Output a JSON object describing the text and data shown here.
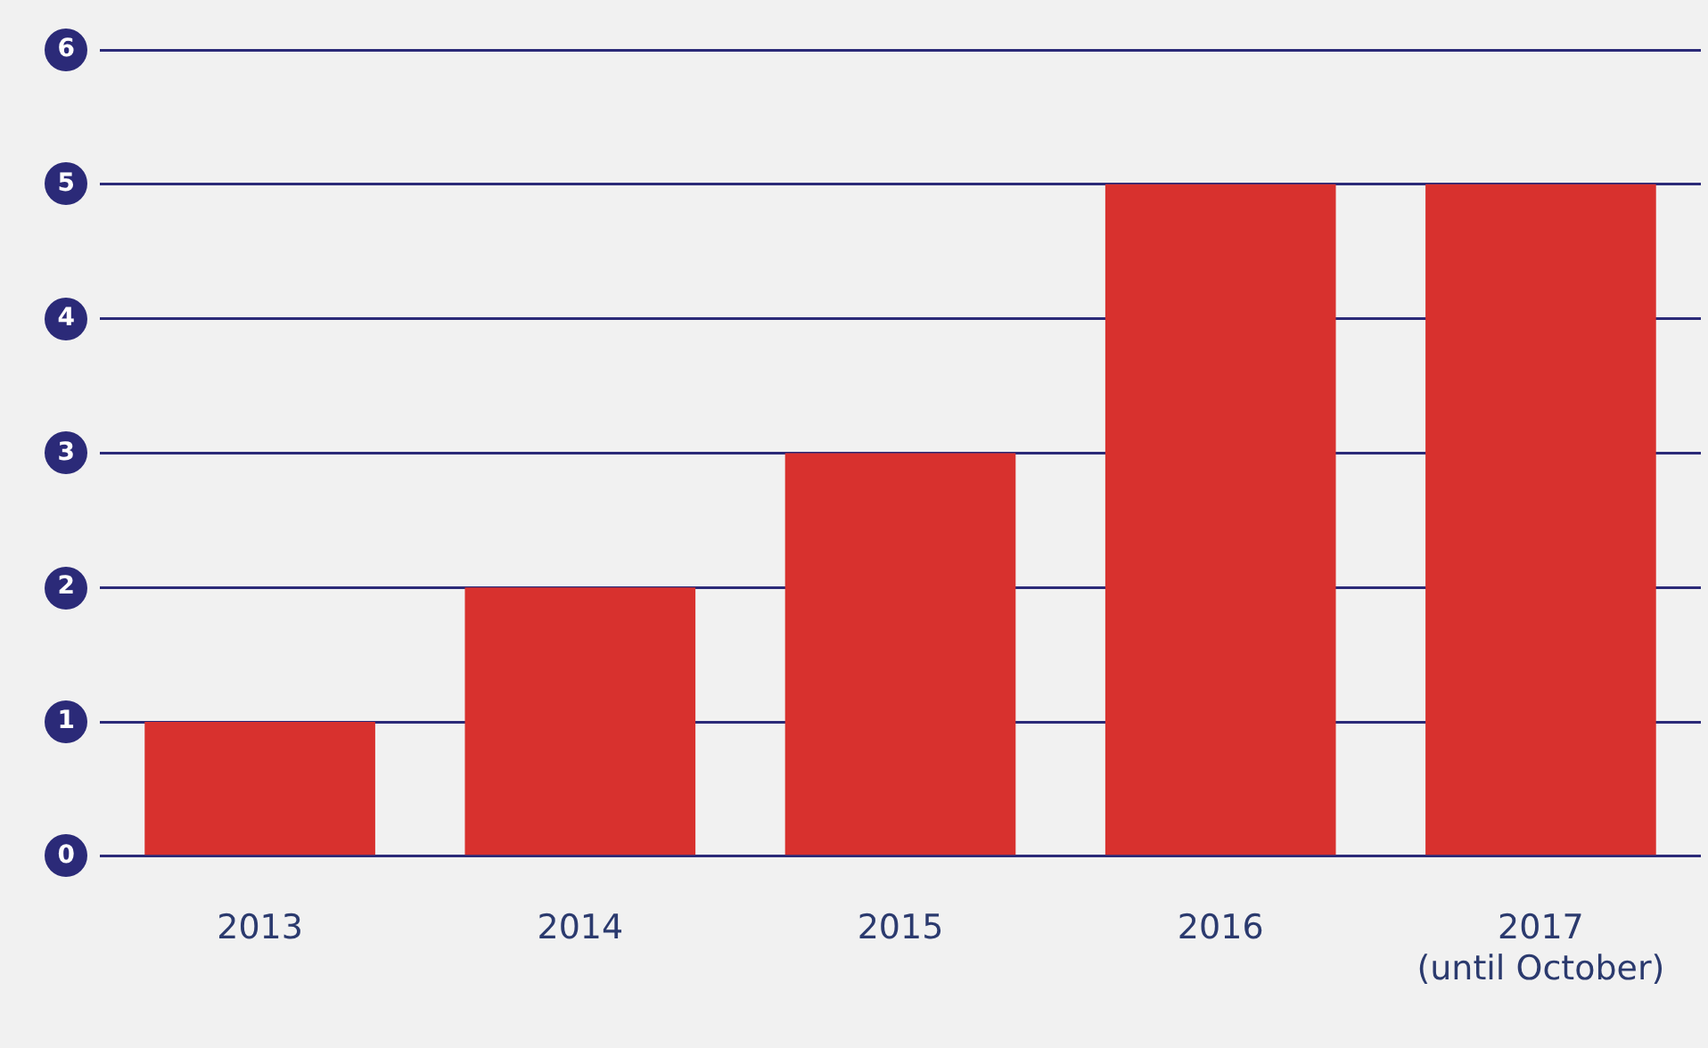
{
  "chart_data": {
    "type": "bar",
    "categories": [
      "2013",
      "2014",
      "2015",
      "2016",
      "2017\n(until October)"
    ],
    "values": [
      1,
      2,
      3,
      5,
      5
    ],
    "color": "#d8312e",
    "ylim": [
      0,
      6
    ],
    "yticks": [
      0,
      1,
      2,
      3,
      4,
      5,
      6
    ],
    "grid": "y",
    "legend": false
  }
}
